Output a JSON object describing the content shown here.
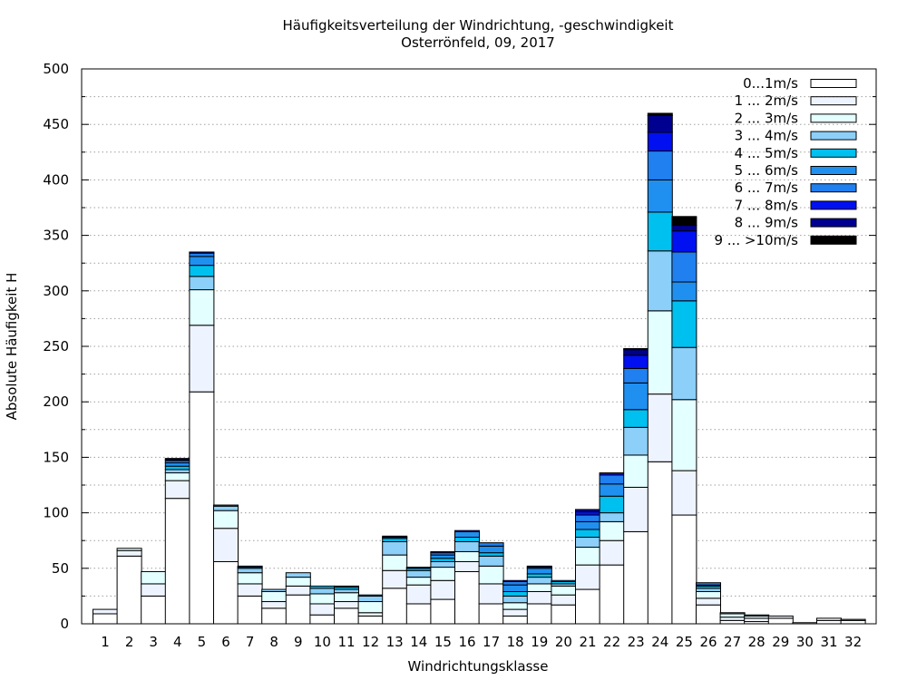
{
  "chart_data": {
    "type": "bar",
    "stacked": true,
    "title": "Häufigkeitsverteilung der Windrichtung, -geschwindigkeit",
    "subtitle": "Osterrönfeld, 09, 2017",
    "xlabel": "Windrichtungsklasse",
    "ylabel": "Absolute Häufigkeit H",
    "ylim": [
      0,
      500
    ],
    "yticks": [
      0,
      50,
      100,
      150,
      200,
      250,
      300,
      350,
      400,
      450,
      500
    ],
    "grid": true,
    "legend_position": "top-right",
    "categories": [
      "1",
      "2",
      "3",
      "4",
      "5",
      "6",
      "7",
      "8",
      "9",
      "10",
      "11",
      "12",
      "13",
      "14",
      "15",
      "16",
      "17",
      "18",
      "19",
      "20",
      "21",
      "22",
      "23",
      "24",
      "25",
      "26",
      "27",
      "28",
      "29",
      "30",
      "31",
      "32"
    ],
    "series": [
      {
        "name": "0...1m/s",
        "color": "#ffffff",
        "values": [
          9,
          61,
          25,
          113,
          209,
          56,
          25,
          14,
          26,
          8,
          14,
          7,
          32,
          18,
          22,
          47,
          18,
          7,
          18,
          17,
          31,
          53,
          83,
          146,
          98,
          17,
          3,
          2,
          5,
          1,
          3,
          3
        ]
      },
      {
        "name": "1 ... 2m/s",
        "color": "#eef4ff",
        "values": [
          4,
          5,
          11,
          16,
          60,
          30,
          11,
          6,
          8,
          10,
          6,
          3,
          16,
          17,
          17,
          9,
          18,
          6,
          11,
          9,
          22,
          22,
          40,
          61,
          40,
          6,
          3,
          3,
          2,
          0,
          2,
          1
        ]
      },
      {
        "name": "2 ... 3m/s",
        "color": "#e3ffff",
        "values": [
          0,
          2,
          11,
          7,
          32,
          16,
          10,
          9,
          8,
          9,
          8,
          10,
          14,
          7,
          12,
          9,
          16,
          6,
          7,
          8,
          16,
          17,
          29,
          75,
          64,
          6,
          3,
          2,
          0,
          0,
          0,
          0
        ]
      },
      {
        "name": "3 ... 4m/s",
        "color": "#8ccff8",
        "values": [
          0,
          0,
          0,
          3,
          12,
          4,
          4,
          2,
          4,
          5,
          3,
          5,
          12,
          6,
          5,
          9,
          9,
          6,
          6,
          2,
          9,
          8,
          25,
          54,
          47,
          3,
          1,
          1,
          0,
          0,
          0,
          0
        ]
      },
      {
        "name": "4 ... 5m/s",
        "color": "#00c0f0",
        "values": [
          0,
          0,
          0,
          3,
          10,
          0,
          1,
          0,
          0,
          2,
          2,
          1,
          3,
          2,
          3,
          4,
          3,
          4,
          3,
          2,
          7,
          15,
          16,
          35,
          42,
          2,
          0,
          0,
          0,
          0,
          0,
          0
        ]
      },
      {
        "name": "5 ... 6m/s",
        "color": "#2090f0",
        "values": [
          0,
          0,
          0,
          3,
          8,
          1,
          0,
          0,
          0,
          0,
          1,
          0,
          1,
          0,
          3,
          5,
          6,
          6,
          5,
          1,
          7,
          11,
          24,
          29,
          17,
          1,
          0,
          0,
          0,
          0,
          0,
          0
        ]
      },
      {
        "name": "6 ... 7m/s",
        "color": "#2080f0",
        "values": [
          0,
          0,
          0,
          2,
          3,
          0,
          1,
          0,
          0,
          0,
          0,
          0,
          0,
          0,
          2,
          0,
          3,
          3,
          1,
          0,
          6,
          8,
          13,
          26,
          27,
          2,
          0,
          0,
          0,
          0,
          0,
          0
        ]
      },
      {
        "name": "7 ... 8m/s",
        "color": "#0010f0",
        "values": [
          0,
          0,
          0,
          1,
          1,
          0,
          0,
          0,
          0,
          0,
          0,
          0,
          0,
          0,
          1,
          1,
          0,
          1,
          1,
          0,
          3,
          2,
          12,
          17,
          19,
          0,
          0,
          0,
          0,
          0,
          0,
          0
        ]
      },
      {
        "name": "8 ... 9m/s",
        "color": "#000090",
        "values": [
          0,
          0,
          0,
          1,
          0,
          0,
          0,
          0,
          0,
          0,
          0,
          0,
          1,
          1,
          0,
          0,
          0,
          0,
          0,
          0,
          2,
          0,
          5,
          15,
          5,
          0,
          0,
          0,
          0,
          0,
          0,
          0
        ]
      },
      {
        "name": "9 ... >10m/s",
        "color": "#000000",
        "values": [
          0,
          0,
          0,
          0,
          0,
          0,
          0,
          0,
          0,
          0,
          0,
          0,
          0,
          0,
          0,
          0,
          0,
          0,
          0,
          0,
          0,
          0,
          1,
          2,
          8,
          0,
          0,
          0,
          0,
          0,
          0,
          0
        ]
      }
    ]
  }
}
